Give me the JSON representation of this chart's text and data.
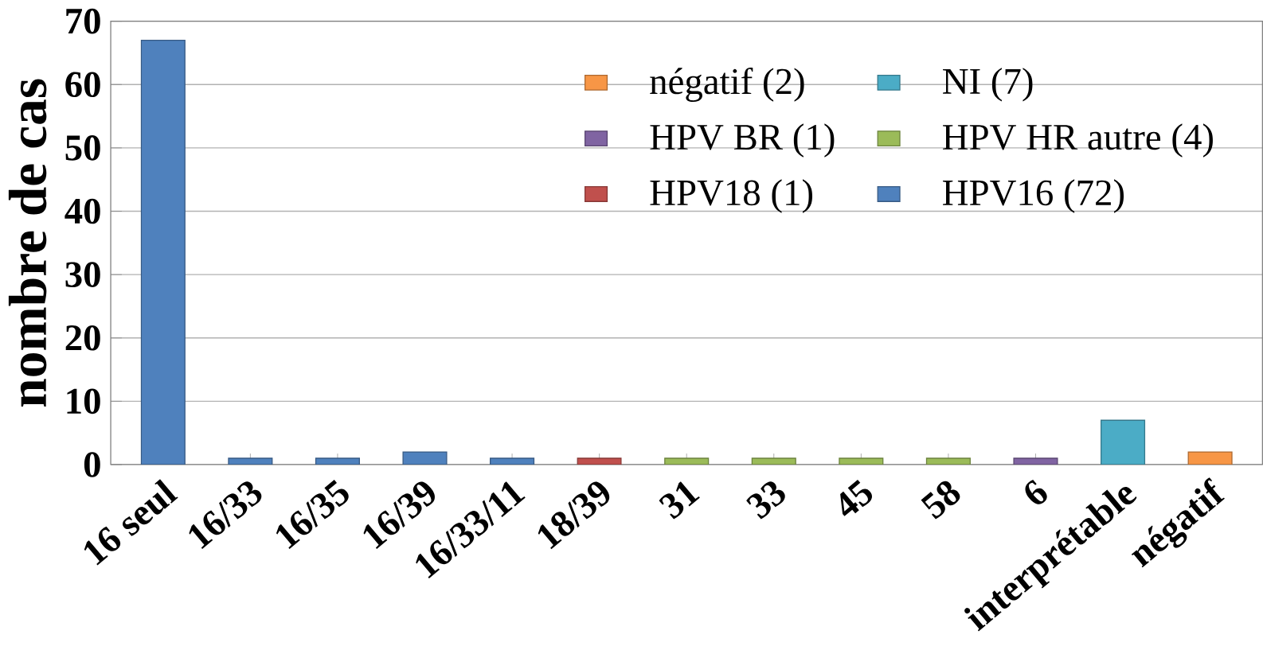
{
  "chart_data": {
    "type": "bar",
    "ylabel": "nombre de cas",
    "categories": [
      "16 seul",
      "16/33",
      "16/35",
      "16/39",
      "16/33/11",
      "18/39",
      "31",
      "33",
      "45",
      "58",
      "6",
      "interprétable",
      "négatif"
    ],
    "series": [
      {
        "name": "négatif (2)",
        "color": "#f79646",
        "values": [
          null,
          null,
          null,
          null,
          null,
          null,
          null,
          null,
          null,
          null,
          null,
          null,
          2
        ]
      },
      {
        "name": "NI (7)",
        "color": "#4bacc6",
        "values": [
          null,
          null,
          null,
          null,
          null,
          null,
          null,
          null,
          null,
          null,
          null,
          7,
          null
        ]
      },
      {
        "name": "HPV BR (1)",
        "color": "#8064a2",
        "values": [
          null,
          null,
          null,
          null,
          null,
          null,
          null,
          null,
          null,
          null,
          1,
          null,
          null
        ]
      },
      {
        "name": "HPV HR autre (4)",
        "color": "#9bbb59",
        "values": [
          null,
          null,
          null,
          null,
          null,
          null,
          1,
          1,
          1,
          1,
          null,
          null,
          null
        ]
      },
      {
        "name": "HPV18 (1)",
        "color": "#c0504d",
        "values": [
          null,
          null,
          null,
          null,
          null,
          1,
          null,
          null,
          null,
          null,
          null,
          null,
          null
        ]
      },
      {
        "name": "HPV16 (72)",
        "color": "#4f81bd",
        "values": [
          67,
          1,
          1,
          2,
          1,
          null,
          null,
          null,
          null,
          null,
          null,
          null,
          null
        ]
      }
    ],
    "ylim": [
      0,
      70
    ],
    "yticks": [
      0,
      10,
      20,
      30,
      40,
      50,
      60,
      70
    ],
    "grid": "y",
    "legend": "top right"
  }
}
